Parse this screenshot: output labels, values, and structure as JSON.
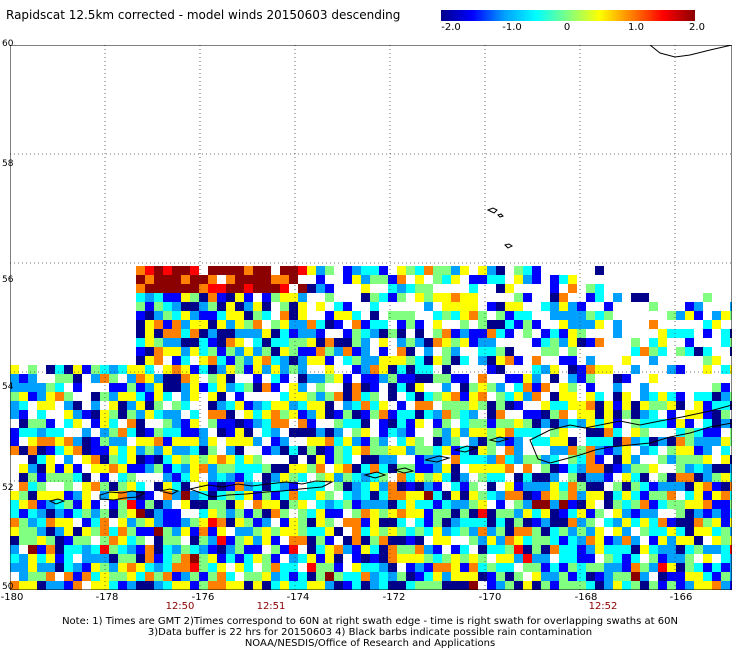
{
  "title": "Rapidscat 12.5km corrected - model winds 20150603 descending",
  "colorbar": {
    "labels": [
      "-2.0",
      "-1.0",
      "0",
      "1.0",
      "2.0"
    ],
    "stops": [
      "#00008b",
      "#0000ff",
      "#00a0ff",
      "#00ffff",
      "#80ff80",
      "#ffff00",
      "#ff8000",
      "#ff0000",
      "#8b0000"
    ]
  },
  "axes": {
    "lat_labels": [
      "60",
      "58",
      "56",
      "54",
      "52",
      "50"
    ],
    "lat_values": [
      60,
      58,
      56,
      54,
      52,
      50
    ],
    "lon_labels": [
      "-180",
      "-178",
      "-176",
      "-174",
      "-172",
      "-170",
      "-168",
      "-166"
    ],
    "lon_values": [
      -180,
      -178,
      -176,
      -174,
      -172,
      -170,
      -168,
      -166
    ],
    "lon_range": [
      -180,
      -164.8
    ],
    "lat_range": [
      50,
      60
    ],
    "grid": true
  },
  "swath_times": [
    {
      "label": "12:50",
      "lon": -176.3
    },
    {
      "label": "12:51",
      "lon": -174.5
    },
    {
      "label": "12:52",
      "lon": -167.7
    }
  ],
  "notes": [
    "Note: 1) Times are GMT 2)Times correspond to 60N at right swath edge - time is right swath for overlapping swaths at 60N",
    "3)Data buffer is 22 hrs for 20150603 4) Black barbs indicate possible rain contamination",
    "NOAA/NESDIS/Office of Research and Applications"
  ]
}
